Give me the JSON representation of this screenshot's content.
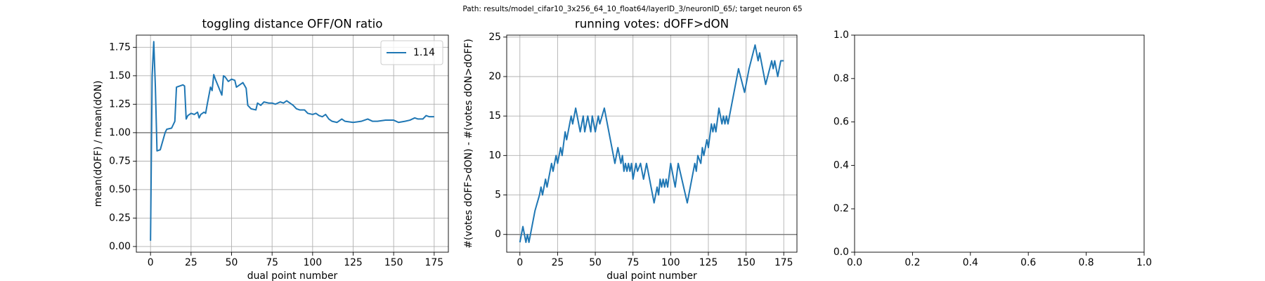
{
  "title": "Path: results/model_cifar10_3x256_64_10_float64/layerID_3/neuronID_65/; target neuron 65",
  "chart_data": [
    {
      "type": "line",
      "title": "toggling distance OFF/ON ratio",
      "xlabel": "dual point number",
      "ylabel": "mean(dOFF) / mean(dON)",
      "x": [
        0,
        1,
        2,
        3,
        4,
        6,
        7,
        9,
        10,
        13,
        15,
        16,
        18,
        20,
        21,
        22,
        23,
        25,
        27,
        29,
        30,
        31,
        33,
        34,
        35,
        37,
        38,
        39,
        40,
        42,
        44,
        45,
        46,
        48,
        50,
        52,
        53,
        55,
        57,
        59,
        60,
        62,
        65,
        66,
        68,
        70,
        73,
        75,
        77,
        80,
        82,
        84,
        86,
        88,
        90,
        92,
        95,
        97,
        100,
        102,
        104,
        106,
        108,
        110,
        112,
        115,
        118,
        120,
        125,
        130,
        134,
        137,
        140,
        145,
        150,
        153,
        157,
        160,
        163,
        165,
        168,
        170,
        172,
        175
      ],
      "series": [
        {
          "name": "1.14",
          "color": "#1f77b4",
          "values": [
            0.05,
            1.5,
            1.8,
            1.4,
            0.84,
            0.85,
            0.9,
            1.0,
            1.03,
            1.04,
            1.1,
            1.4,
            1.41,
            1.42,
            1.41,
            1.12,
            1.15,
            1.17,
            1.16,
            1.18,
            1.13,
            1.16,
            1.18,
            1.17,
            1.25,
            1.4,
            1.37,
            1.51,
            1.47,
            1.4,
            1.33,
            1.5,
            1.49,
            1.45,
            1.47,
            1.46,
            1.4,
            1.42,
            1.44,
            1.39,
            1.24,
            1.21,
            1.2,
            1.26,
            1.24,
            1.27,
            1.26,
            1.26,
            1.25,
            1.27,
            1.26,
            1.28,
            1.26,
            1.24,
            1.21,
            1.2,
            1.2,
            1.17,
            1.16,
            1.17,
            1.15,
            1.14,
            1.16,
            1.12,
            1.1,
            1.09,
            1.12,
            1.1,
            1.09,
            1.1,
            1.12,
            1.1,
            1.1,
            1.11,
            1.11,
            1.09,
            1.1,
            1.11,
            1.13,
            1.12,
            1.12,
            1.15,
            1.14,
            1.14
          ]
        }
      ],
      "hline": 1,
      "hline_color": "#808080",
      "xlim": [
        -8.75,
        183.75
      ],
      "xticks": [
        0,
        25,
        50,
        75,
        100,
        125,
        150,
        175
      ],
      "ylim": [
        -0.05,
        1.857
      ],
      "yticks": [
        {
          "value": 0,
          "label": "0.00"
        },
        {
          "value": 0.25,
          "label": "0.25"
        },
        {
          "value": 0.5,
          "label": "0.50"
        },
        {
          "value": 0.75,
          "label": "0.75"
        },
        {
          "value": 1,
          "label": "1.00"
        },
        {
          "value": 1.25,
          "label": "1.25"
        },
        {
          "value": 1.5,
          "label": "1.50"
        },
        {
          "value": 1.75,
          "label": "1.75"
        }
      ],
      "grid": true,
      "legend": "upper right"
    },
    {
      "type": "line",
      "title": "running votes: dOFF>dON",
      "xlabel": "dual point number",
      "ylabel": "#(votes dOFF>dON) - #(votes dON>dOFF)",
      "x": [
        0,
        2,
        4,
        5,
        6,
        8,
        10,
        13,
        14,
        15,
        17,
        18,
        21,
        22,
        24,
        25,
        27,
        28,
        30,
        31,
        34,
        35,
        37,
        40,
        42,
        43,
        45,
        47,
        48,
        50,
        52,
        53,
        56,
        59,
        61,
        63,
        65,
        67,
        68,
        69,
        70,
        71,
        72,
        73,
        74,
        75,
        77,
        78,
        80,
        82,
        84,
        87,
        89,
        91,
        92,
        93,
        94,
        95,
        96,
        97,
        98,
        100,
        102,
        103,
        105,
        111,
        114,
        116,
        117,
        118,
        120,
        121,
        122,
        124,
        125,
        127,
        128,
        129,
        130,
        132,
        134,
        135,
        136,
        137,
        138,
        139,
        145,
        149,
        152,
        156,
        158,
        159,
        163,
        167,
        168,
        169,
        171,
        173,
        175
      ],
      "series": [
        {
          "color": "#1f77b4",
          "values": [
            -1,
            1,
            -1,
            0,
            -1,
            1,
            3,
            5,
            6,
            5,
            7,
            6,
            9,
            8,
            10,
            9,
            11,
            10,
            13,
            12,
            15,
            14,
            16,
            13,
            15,
            13,
            15,
            13,
            15,
            13,
            15,
            14,
            16,
            13,
            11,
            9,
            11,
            9,
            10,
            8,
            9,
            8,
            9,
            8,
            9,
            7,
            9,
            8,
            9,
            7,
            9,
            6,
            4,
            6,
            5,
            7,
            6,
            7,
            6,
            7,
            6,
            9,
            7,
            6,
            9,
            4,
            7,
            9,
            8,
            10,
            9,
            11,
            10,
            12,
            11,
            14,
            13,
            14,
            13,
            16,
            14,
            15,
            14,
            15,
            14,
            15,
            21,
            18,
            21,
            24,
            22,
            23,
            19,
            22,
            21,
            22,
            20,
            22,
            22
          ]
        }
      ],
      "hline": 0,
      "hline_color": "#808080",
      "xlim": [
        -8.75,
        183.75
      ],
      "xticks": [
        0,
        25,
        50,
        75,
        100,
        125,
        150,
        175
      ],
      "ylim": [
        -2.25,
        25.25
      ],
      "yticks": [
        0,
        5,
        10,
        15,
        20,
        25
      ],
      "grid": true
    },
    {
      "type": "empty",
      "xlim": [
        0,
        1
      ],
      "xticks": [
        {
          "value": 0,
          "label": "0.0"
        },
        {
          "value": 0.2,
          "label": "0.2"
        },
        {
          "value": 0.4,
          "label": "0.4"
        },
        {
          "value": 0.6,
          "label": "0.6"
        },
        {
          "value": 0.8,
          "label": "0.8"
        },
        {
          "value": 1,
          "label": "1.0"
        }
      ],
      "ylim": [
        0,
        1
      ],
      "yticks": [
        {
          "value": 0,
          "label": "0.0"
        },
        {
          "value": 0.2,
          "label": "0.2"
        },
        {
          "value": 0.4,
          "label": "0.4"
        },
        {
          "value": 0.6,
          "label": "0.6"
        },
        {
          "value": 0.8,
          "label": "0.8"
        },
        {
          "value": 1,
          "label": "1.0"
        }
      ],
      "grid": false
    }
  ]
}
